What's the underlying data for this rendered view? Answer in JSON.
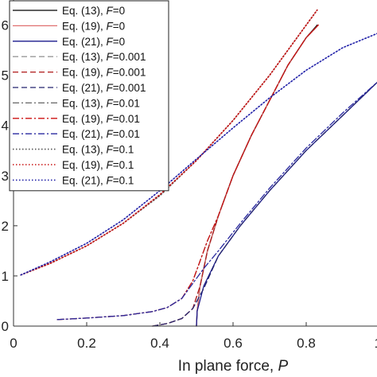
{
  "chart_data": {
    "type": "line",
    "title": "",
    "xlabel": "In plane force, ",
    "xlabel_var": "P",
    "ylabel": "",
    "xlim": [
      0,
      1
    ],
    "ylim": [
      0,
      0.65
    ],
    "x_ticks": [
      {
        "value": 0,
        "label": "0"
      },
      {
        "value": 0.2,
        "label": "0.2"
      },
      {
        "value": 0.4,
        "label": "0.4"
      },
      {
        "value": 0.6,
        "label": "0.6"
      },
      {
        "value": 0.8,
        "label": "0.8"
      },
      {
        "value": 1.0,
        "label": "1"
      }
    ],
    "y_ticks": [
      {
        "value": 0.0,
        "label": "0"
      },
      {
        "value": 0.1,
        "label": "1"
      },
      {
        "value": 0.2,
        "label": "2"
      },
      {
        "value": 0.3,
        "label": "3"
      },
      {
        "value": 0.4,
        "label": "4"
      },
      {
        "value": 0.5,
        "label": "5"
      },
      {
        "value": 0.6,
        "label": "6"
      }
    ],
    "grid": false,
    "legend_position": "top-left",
    "series": [
      {
        "eq": "Eq. (13), ",
        "fval": "=0",
        "color": "#000000",
        "dash": "",
        "points": [
          [
            0.5,
            0.0
          ],
          [
            0.502,
            0.03
          ],
          [
            0.51,
            0.08
          ],
          [
            0.53,
            0.15
          ],
          [
            0.56,
            0.22
          ],
          [
            0.6,
            0.3
          ],
          [
            0.65,
            0.38
          ],
          [
            0.7,
            0.45
          ],
          [
            0.75,
            0.52
          ],
          [
            0.8,
            0.575
          ],
          [
            0.83,
            0.6
          ]
        ]
      },
      {
        "eq": "Eq. (19), ",
        "fval": "=0",
        "color": "#e07070",
        "dash": "",
        "points": [
          [
            0.5,
            0.0
          ],
          [
            0.502,
            0.03
          ],
          [
            0.51,
            0.08
          ],
          [
            0.53,
            0.15
          ],
          [
            0.56,
            0.22
          ],
          [
            0.6,
            0.3
          ],
          [
            0.65,
            0.38
          ],
          [
            0.7,
            0.45
          ],
          [
            0.75,
            0.52
          ],
          [
            0.8,
            0.575
          ],
          [
            0.833,
            0.6
          ]
        ]
      },
      {
        "eq": "Eq. (21), ",
        "fval": "=0",
        "color": "#1a1a8c",
        "dash": "",
        "points": [
          [
            0.5,
            0.0
          ],
          [
            0.502,
            0.03
          ],
          [
            0.52,
            0.08
          ],
          [
            0.56,
            0.14
          ],
          [
            0.62,
            0.2
          ],
          [
            0.7,
            0.27
          ],
          [
            0.8,
            0.35
          ],
          [
            0.9,
            0.42
          ],
          [
            1.0,
            0.49
          ]
        ]
      },
      {
        "eq": "Eq. (13), ",
        "fval": "=0.001",
        "color": "#999999",
        "dash": "7,4",
        "points": [
          [
            0.38,
            0.0
          ],
          [
            0.42,
            0.005
          ],
          [
            0.46,
            0.015
          ],
          [
            0.49,
            0.035
          ],
          [
            0.51,
            0.08
          ],
          [
            0.53,
            0.15
          ],
          [
            0.56,
            0.22
          ],
          [
            0.6,
            0.3
          ],
          [
            0.65,
            0.38
          ],
          [
            0.7,
            0.45
          ],
          [
            0.75,
            0.52
          ],
          [
            0.8,
            0.575
          ],
          [
            0.83,
            0.598
          ]
        ]
      },
      {
        "eq": "Eq. (19), ",
        "fval": "=0.001",
        "color": "#b01a1a",
        "dash": "7,4",
        "points": [
          [
            0.38,
            0.0
          ],
          [
            0.42,
            0.005
          ],
          [
            0.46,
            0.015
          ],
          [
            0.49,
            0.035
          ],
          [
            0.51,
            0.08
          ],
          [
            0.53,
            0.15
          ],
          [
            0.56,
            0.22
          ],
          [
            0.6,
            0.3
          ],
          [
            0.65,
            0.38
          ],
          [
            0.7,
            0.45
          ],
          [
            0.75,
            0.52
          ],
          [
            0.8,
            0.575
          ],
          [
            0.833,
            0.6
          ]
        ]
      },
      {
        "eq": "Eq. (21), ",
        "fval": "=0.001",
        "color": "#24246e",
        "dash": "7,4",
        "points": [
          [
            0.38,
            0.0
          ],
          [
            0.42,
            0.005
          ],
          [
            0.46,
            0.015
          ],
          [
            0.49,
            0.035
          ],
          [
            0.52,
            0.075
          ],
          [
            0.56,
            0.14
          ],
          [
            0.62,
            0.2
          ],
          [
            0.7,
            0.27
          ],
          [
            0.8,
            0.35
          ],
          [
            0.9,
            0.42
          ],
          [
            1.0,
            0.49
          ]
        ]
      },
      {
        "eq": "Eq. (13), ",
        "fval": "=0.01",
        "color": "#666666",
        "dash": "8,3,2,3",
        "points": [
          [
            0.12,
            0.013
          ],
          [
            0.2,
            0.016
          ],
          [
            0.3,
            0.021
          ],
          [
            0.38,
            0.029
          ],
          [
            0.42,
            0.037
          ],
          [
            0.46,
            0.055
          ],
          [
            0.49,
            0.09
          ],
          [
            0.51,
            0.13
          ],
          [
            0.53,
            0.17
          ],
          [
            0.56,
            0.22
          ],
          [
            0.6,
            0.3
          ],
          [
            0.65,
            0.38
          ],
          [
            0.7,
            0.45
          ],
          [
            0.75,
            0.52
          ],
          [
            0.8,
            0.575
          ],
          [
            0.83,
            0.598
          ]
        ]
      },
      {
        "eq": "Eq. (19), ",
        "fval": "=0.01",
        "color": "#cc1010",
        "dash": "8,3,2,3",
        "points": [
          [
            0.12,
            0.013
          ],
          [
            0.2,
            0.016
          ],
          [
            0.3,
            0.021
          ],
          [
            0.38,
            0.029
          ],
          [
            0.42,
            0.037
          ],
          [
            0.46,
            0.055
          ],
          [
            0.49,
            0.09
          ],
          [
            0.51,
            0.13
          ],
          [
            0.53,
            0.17
          ],
          [
            0.56,
            0.22
          ],
          [
            0.6,
            0.3
          ],
          [
            0.65,
            0.38
          ],
          [
            0.7,
            0.45
          ],
          [
            0.75,
            0.52
          ],
          [
            0.8,
            0.575
          ],
          [
            0.833,
            0.6
          ]
        ]
      },
      {
        "eq": "Eq. (21), ",
        "fval": "=0.01",
        "color": "#2a2aa0",
        "dash": "8,3,2,3",
        "points": [
          [
            0.12,
            0.013
          ],
          [
            0.2,
            0.016
          ],
          [
            0.3,
            0.021
          ],
          [
            0.38,
            0.029
          ],
          [
            0.42,
            0.037
          ],
          [
            0.46,
            0.055
          ],
          [
            0.49,
            0.085
          ],
          [
            0.52,
            0.115
          ],
          [
            0.56,
            0.15
          ],
          [
            0.62,
            0.205
          ],
          [
            0.7,
            0.275
          ],
          [
            0.8,
            0.355
          ],
          [
            0.9,
            0.425
          ],
          [
            1.0,
            0.49
          ]
        ]
      },
      {
        "eq": "Eq. (13), ",
        "fval": "=0.1",
        "color": "#555555",
        "dash": "1.5,2.5",
        "points": [
          [
            0.02,
            0.102
          ],
          [
            0.1,
            0.125
          ],
          [
            0.2,
            0.16
          ],
          [
            0.3,
            0.205
          ],
          [
            0.4,
            0.26
          ],
          [
            0.5,
            0.33
          ],
          [
            0.6,
            0.41
          ],
          [
            0.7,
            0.5
          ],
          [
            0.8,
            0.6
          ],
          [
            0.83,
            0.63
          ]
        ]
      },
      {
        "eq": "Eq. (19), ",
        "fval": "=0.1",
        "color": "#c81414",
        "dash": "1.5,2.5",
        "points": [
          [
            0.02,
            0.102
          ],
          [
            0.1,
            0.125
          ],
          [
            0.2,
            0.16
          ],
          [
            0.3,
            0.205
          ],
          [
            0.4,
            0.262
          ],
          [
            0.5,
            0.33
          ],
          [
            0.6,
            0.41
          ],
          [
            0.7,
            0.5
          ],
          [
            0.8,
            0.6
          ],
          [
            0.83,
            0.63
          ]
        ]
      },
      {
        "eq": "Eq. (21), ",
        "fval": "=0.1",
        "color": "#2020a8",
        "dash": "1.5,2.5",
        "points": [
          [
            0.02,
            0.102
          ],
          [
            0.1,
            0.128
          ],
          [
            0.2,
            0.165
          ],
          [
            0.3,
            0.212
          ],
          [
            0.4,
            0.27
          ],
          [
            0.5,
            0.333
          ],
          [
            0.6,
            0.395
          ],
          [
            0.7,
            0.455
          ],
          [
            0.8,
            0.51
          ],
          [
            0.9,
            0.555
          ],
          [
            1.0,
            0.585
          ]
        ]
      }
    ],
    "legend_var": "F"
  }
}
